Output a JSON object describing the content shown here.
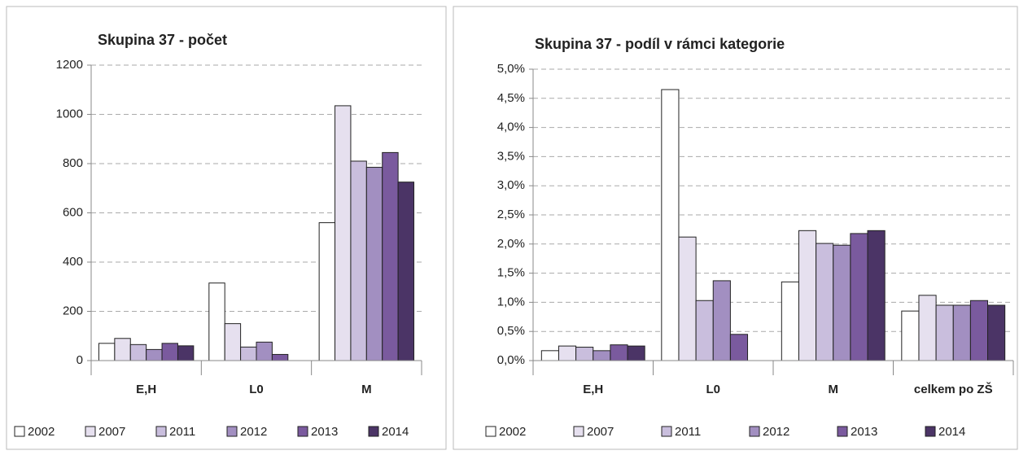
{
  "chart_data": [
    {
      "type": "bar",
      "title": "Skupina 37 - počet",
      "categories": [
        "E,H",
        "L0",
        "M"
      ],
      "series": [
        {
          "name": "2002",
          "color": "#ffffff",
          "values": [
            70,
            315,
            560
          ]
        },
        {
          "name": "2007",
          "color": "#e6e0ef",
          "values": [
            90,
            150,
            1035
          ]
        },
        {
          "name": "2011",
          "color": "#c9bedd",
          "values": [
            65,
            55,
            810
          ]
        },
        {
          "name": "2012",
          "color": "#a28fc1",
          "values": [
            45,
            75,
            785
          ]
        },
        {
          "name": "2013",
          "color": "#7a5a9e",
          "values": [
            70,
            25,
            845
          ]
        },
        {
          "name": "2014",
          "color": "#4b3466",
          "values": [
            60,
            null,
            725
          ]
        }
      ],
      "ylim": [
        0,
        1200
      ],
      "yticks": [
        0,
        200,
        400,
        600,
        800,
        1000,
        1200
      ],
      "grid": true,
      "legend": "bottom"
    },
    {
      "type": "bar",
      "title": "Skupina 37 - podíl v rámci kategorie",
      "categories": [
        "E,H",
        "L0",
        "M",
        "celkem po ZŠ"
      ],
      "series": [
        {
          "name": "2002",
          "color": "#ffffff",
          "values": [
            0.17,
            4.65,
            1.35,
            0.85
          ]
        },
        {
          "name": "2007",
          "color": "#e6e0ef",
          "values": [
            0.25,
            2.12,
            2.23,
            1.12
          ]
        },
        {
          "name": "2011",
          "color": "#c9bedd",
          "values": [
            0.23,
            1.03,
            2.01,
            0.95
          ]
        },
        {
          "name": "2012",
          "color": "#a28fc1",
          "values": [
            0.17,
            1.37,
            1.98,
            0.95
          ]
        },
        {
          "name": "2013",
          "color": "#7a5a9e",
          "values": [
            0.27,
            0.45,
            2.18,
            1.03
          ]
        },
        {
          "name": "2014",
          "color": "#4b3466",
          "values": [
            0.25,
            null,
            2.23,
            0.95
          ]
        }
      ],
      "ylim": [
        0,
        5
      ],
      "yticks": [
        {
          "value": 0,
          "label": "0,0%"
        },
        {
          "value": 0.5,
          "label": "0,5%"
        },
        {
          "value": 1,
          "label": "1,0%"
        },
        {
          "value": 1.5,
          "label": "1,5%"
        },
        {
          "value": 2,
          "label": "2,0%"
        },
        {
          "value": 2.5,
          "label": "2,5%"
        },
        {
          "value": 3,
          "label": "3,0%"
        },
        {
          "value": 3.5,
          "label": "3,5%"
        },
        {
          "value": 4,
          "label": "4,0%"
        },
        {
          "value": 4.5,
          "label": "4,5%"
        },
        {
          "value": 5,
          "label": "5,0%"
        }
      ],
      "grid": true,
      "legend": "bottom"
    }
  ]
}
